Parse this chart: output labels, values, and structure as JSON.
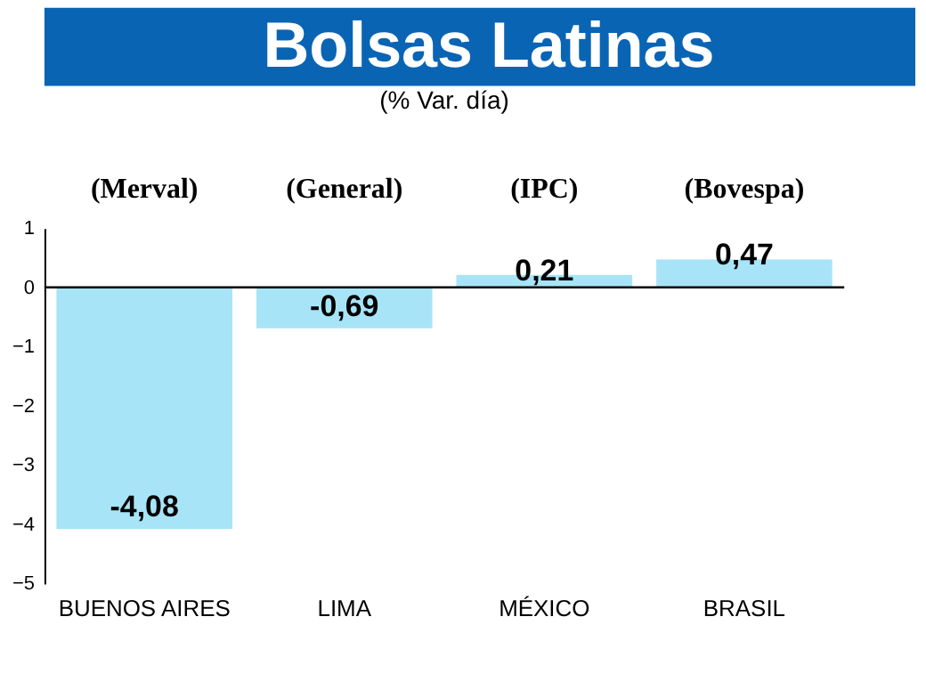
{
  "chart_data": {
    "type": "bar",
    "title": "Bolsas Latinas",
    "subtitle": "(% Var. día)",
    "categories": [
      "BUENOS AIRES",
      "LIMA",
      "MÉXICO",
      "BRASIL"
    ],
    "values": [
      -4.08,
      -0.69,
      0.21,
      0.47
    ],
    "value_labels": [
      "-4,08",
      "-0,69",
      "0,21",
      "0,47"
    ],
    "color": "#a8e4f7",
    "ylim": [
      -5,
      1
    ],
    "yticks": [
      -5,
      -4,
      -3,
      -2,
      -1,
      0,
      1
    ],
    "grid": false,
    "ref_lines": [
      {
        "axis": "y",
        "value": 0,
        "color": "#000000"
      }
    ],
    "annotations": [
      "(Merval)",
      "(General)",
      "(IPC)",
      "(Bovespa)"
    ]
  }
}
